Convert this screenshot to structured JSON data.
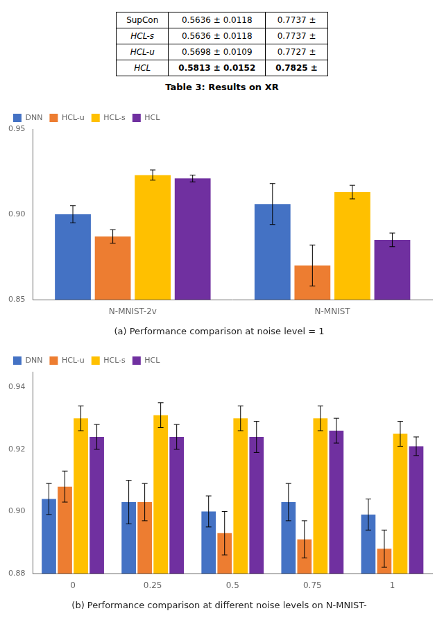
{
  "table": {
    "rows": [
      [
        "SupCon",
        "0.5636 ± 0.0118",
        "0.7737 ±"
      ],
      [
        "HCL-s",
        "0.5636 ± 0.0118",
        "0.7737 ±"
      ],
      [
        "HCL-u",
        "0.5698 ± 0.0109",
        "0.7727 ±"
      ],
      [
        "HCL",
        "0.5813 ± 0.0152",
        "0.7825 ±"
      ]
    ],
    "caption": "Table 3: Results on XR"
  },
  "chart_data": [
    {
      "type": "bar",
      "title": "(a) Performance comparison at noise level = 1",
      "categories": [
        "N-MNIST-2v",
        "N-MNIST"
      ],
      "series": [
        {
          "name": "DNN",
          "color": "#4472C4",
          "values": [
            0.9,
            0.906
          ],
          "errors": [
            0.005,
            0.012
          ]
        },
        {
          "name": "HCL-u",
          "color": "#ED7D31",
          "values": [
            0.887,
            0.87
          ],
          "errors": [
            0.004,
            0.012
          ]
        },
        {
          "name": "HCL-s",
          "color": "#FFC000",
          "values": [
            0.923,
            0.913
          ],
          "errors": [
            0.003,
            0.004
          ]
        },
        {
          "name": "HCL",
          "color": "#7030A0",
          "values": [
            0.921,
            0.885
          ],
          "errors": [
            0.002,
            0.004
          ]
        }
      ],
      "ylim": [
        0.85,
        0.95
      ],
      "yticks": [
        0.85,
        {
          "value": 0.9,
          "label": "0.90"
        },
        0.95
      ],
      "grid": false,
      "legend": "upper left"
    },
    {
      "type": "bar",
      "title": "(b) Performance comparison at different noise levels on N-MNIST-",
      "categories": [
        "0",
        "0.25",
        "0.5",
        "0.75",
        "1"
      ],
      "series": [
        {
          "name": "DNN",
          "color": "#4472C4",
          "values": [
            0.904,
            0.903,
            0.9,
            0.903,
            0.899
          ],
          "errors": [
            0.005,
            0.007,
            0.005,
            0.006,
            0.005
          ]
        },
        {
          "name": "HCL-u",
          "color": "#ED7D31",
          "values": [
            0.908,
            0.903,
            0.893,
            0.891,
            0.888
          ],
          "errors": [
            0.005,
            0.006,
            0.007,
            0.006,
            0.006
          ]
        },
        {
          "name": "HCL-s",
          "color": "#FFC000",
          "values": [
            0.93,
            0.931,
            0.93,
            0.93,
            0.925
          ],
          "errors": [
            0.004,
            0.004,
            0.004,
            0.004,
            0.004
          ]
        },
        {
          "name": "HCL",
          "color": "#7030A0",
          "values": [
            0.924,
            0.924,
            0.924,
            0.926,
            0.921
          ],
          "errors": [
            0.004,
            0.004,
            0.005,
            0.004,
            0.003
          ]
        }
      ],
      "ylim": [
        0.88,
        0.945
      ],
      "yticks": [
        0.88,
        {
          "value": 0.9,
          "label": "0.90"
        },
        0.92,
        0.94
      ],
      "grid": false,
      "legend": "upper left"
    }
  ]
}
